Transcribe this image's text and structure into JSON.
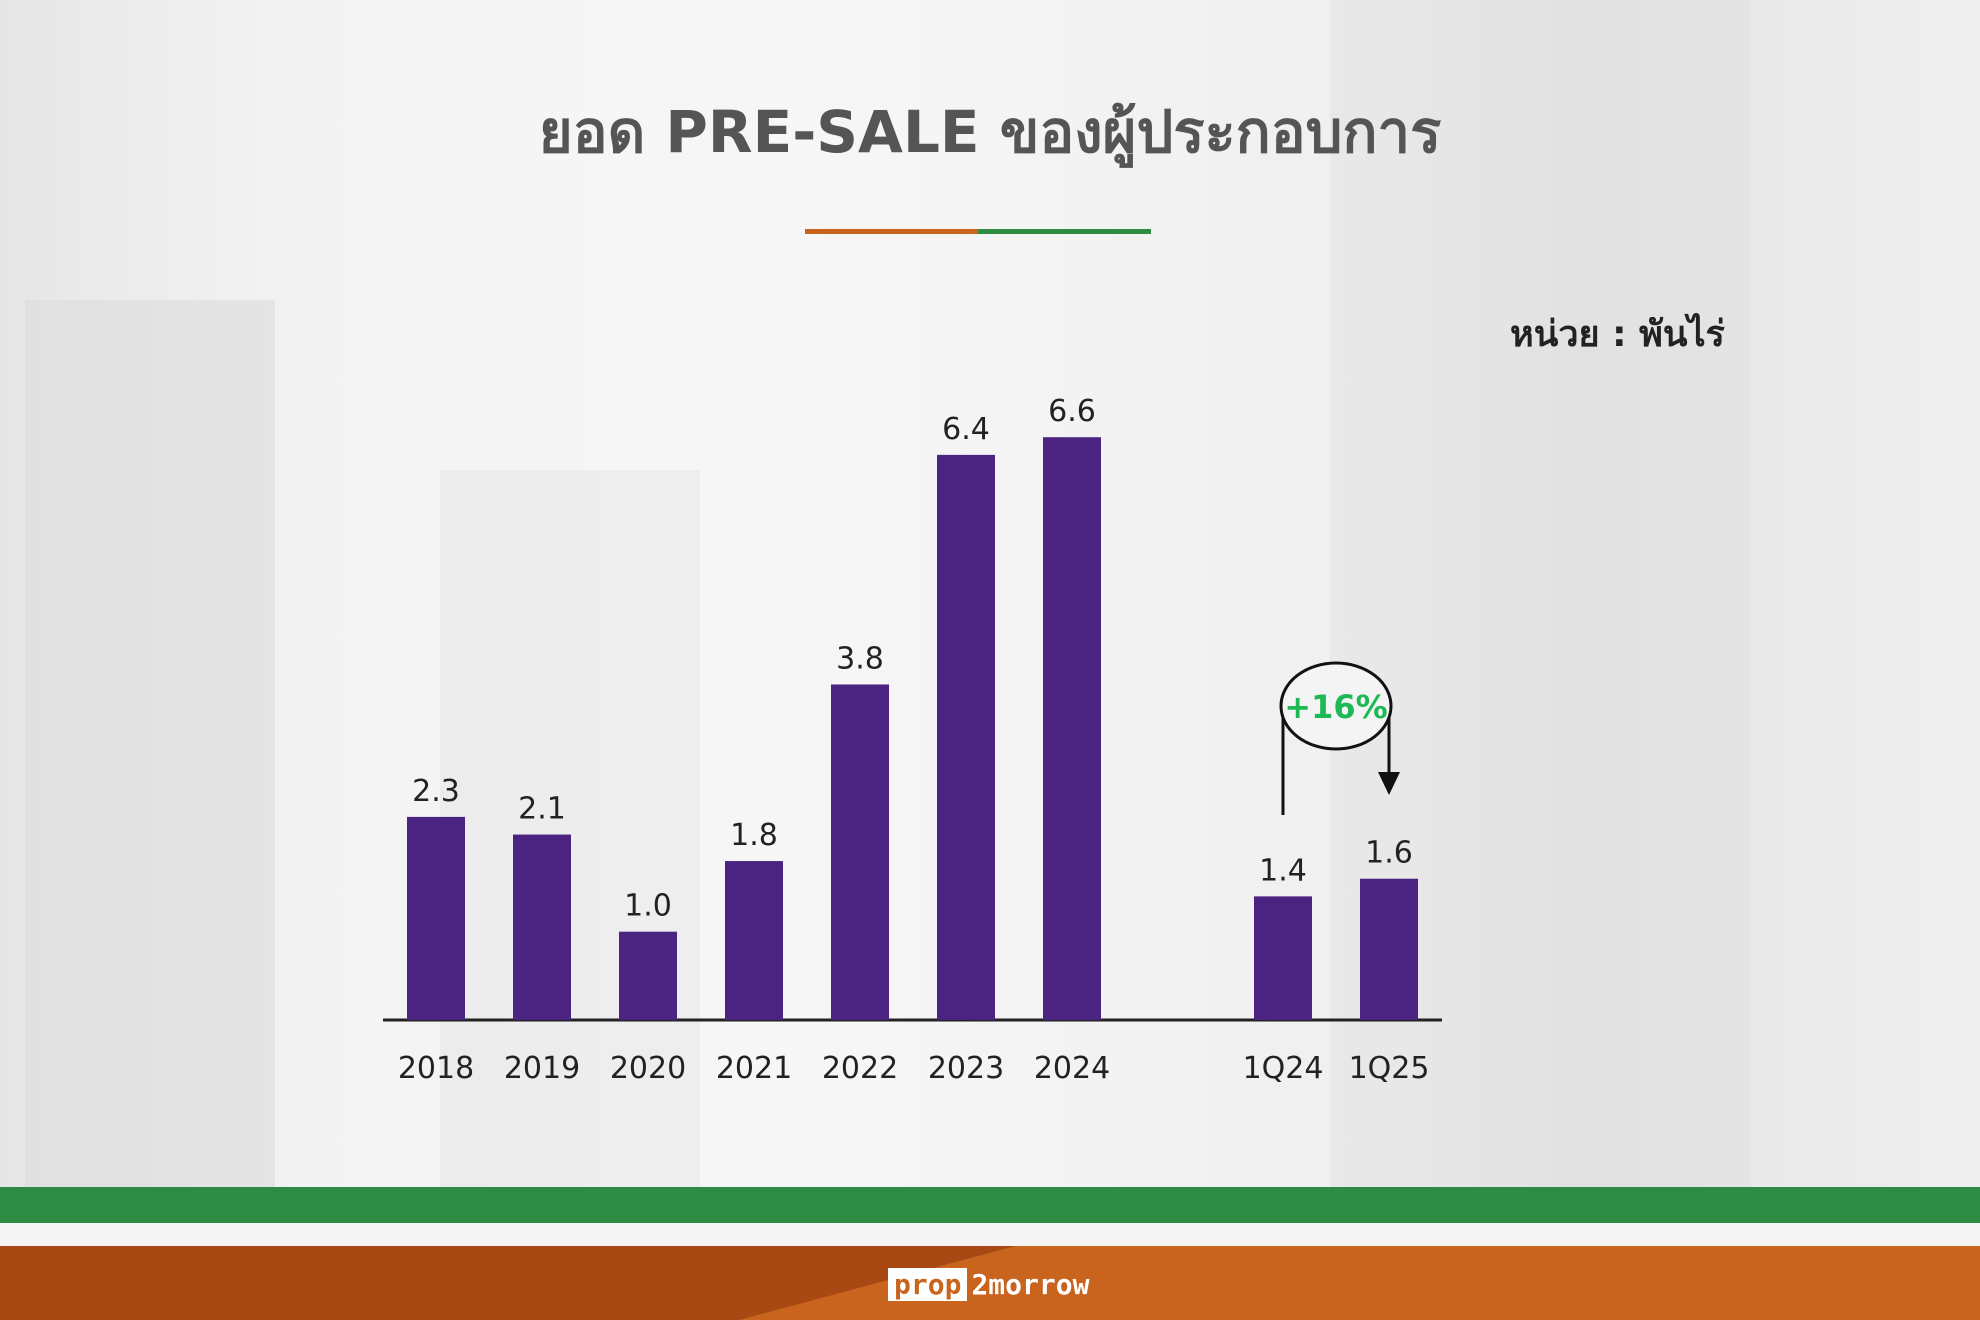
{
  "title": "ยอด PRE-SALE ของผู้ประกอบการ",
  "unit_label": "หน่วย : พันไร่",
  "logo": {
    "part1": "prop",
    "part2": "2morrow"
  },
  "colors": {
    "bar": "#4b2481",
    "accent_orange": "#c8641e",
    "accent_green": "#2e8b44",
    "annotation": "#1db954"
  },
  "chart_data": {
    "type": "bar",
    "title": "ยอด PRE-SALE ของผู้ประกอบการ",
    "ylabel": "หน่วย : พันไร่",
    "categories": [
      "2018",
      "2019",
      "2020",
      "2021",
      "2022",
      "2023",
      "2024",
      "1Q24",
      "1Q25"
    ],
    "values": [
      2.3,
      2.1,
      1.0,
      1.8,
      3.8,
      6.4,
      6.6,
      1.4,
      1.6
    ],
    "labels": [
      "2.3",
      "2.1",
      "1.0",
      "1.8",
      "3.8",
      "6.4",
      "6.6",
      "1.4",
      "1.6"
    ],
    "ylim": [
      0,
      7
    ],
    "grid": false,
    "annotation": {
      "text": "+16%",
      "from": "1Q24",
      "to": "1Q25"
    }
  }
}
